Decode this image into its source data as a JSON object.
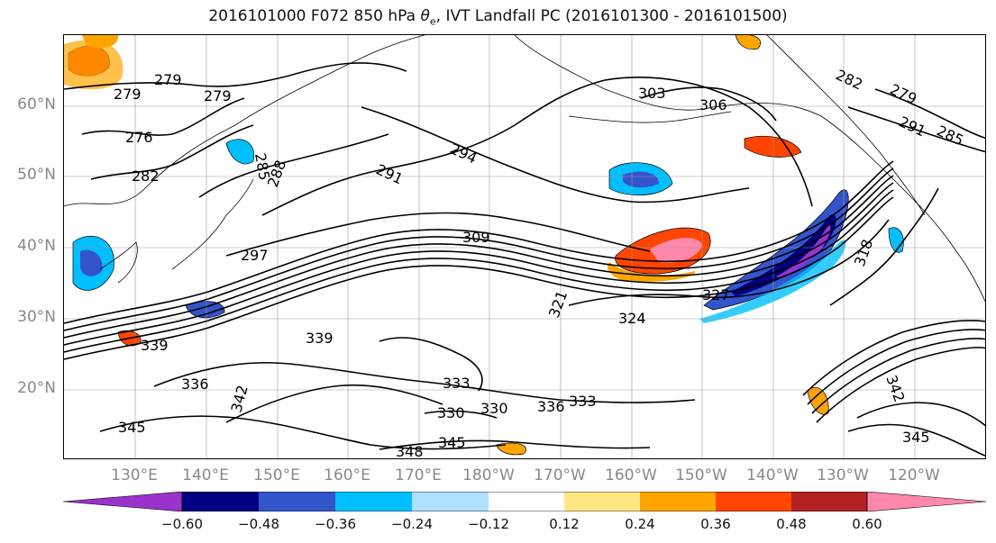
{
  "title_text": "2016101000 F072 850 hPa",
  "title_symbol": "θ",
  "title_sub": "e",
  "title_rest": ", IVT Landfall PC (2016101300 - 2016101500)",
  "lat_labels": [
    "60°N",
    "50°N",
    "40°N",
    "30°N",
    "20°N"
  ],
  "lon_labels": [
    "130°E",
    "140°E",
    "150°E",
    "160°E",
    "170°E",
    "180°W",
    "170°W",
    "160°W",
    "150°W",
    "140°W",
    "130°W",
    "120°W"
  ],
  "contour_labels": [
    "279",
    "279",
    "279",
    "276",
    "282",
    "285",
    "288",
    "291",
    "294",
    "297",
    "303",
    "306",
    "309",
    "327",
    "321",
    "330",
    "333",
    "336",
    "342",
    "345",
    "348",
    "345",
    "345",
    "339",
    "339",
    "342",
    "336",
    "333",
    "330",
    "324",
    "318",
    "291",
    "285",
    "279",
    "282"
  ],
  "colorbar": {
    "tick_labels": [
      "−0.60",
      "−0.48",
      "−0.36",
      "−0.24",
      "−0.12",
      "0.12",
      "0.24",
      "0.36",
      "0.48",
      "0.60"
    ],
    "colors": [
      "#9933cc",
      "#000080",
      "#3355cc",
      "#00bfff",
      "#b0e0ff",
      "#ffffff",
      "#ffe680",
      "#ffa500",
      "#ff4500",
      "#b22222",
      "#ff88aa"
    ]
  }
}
